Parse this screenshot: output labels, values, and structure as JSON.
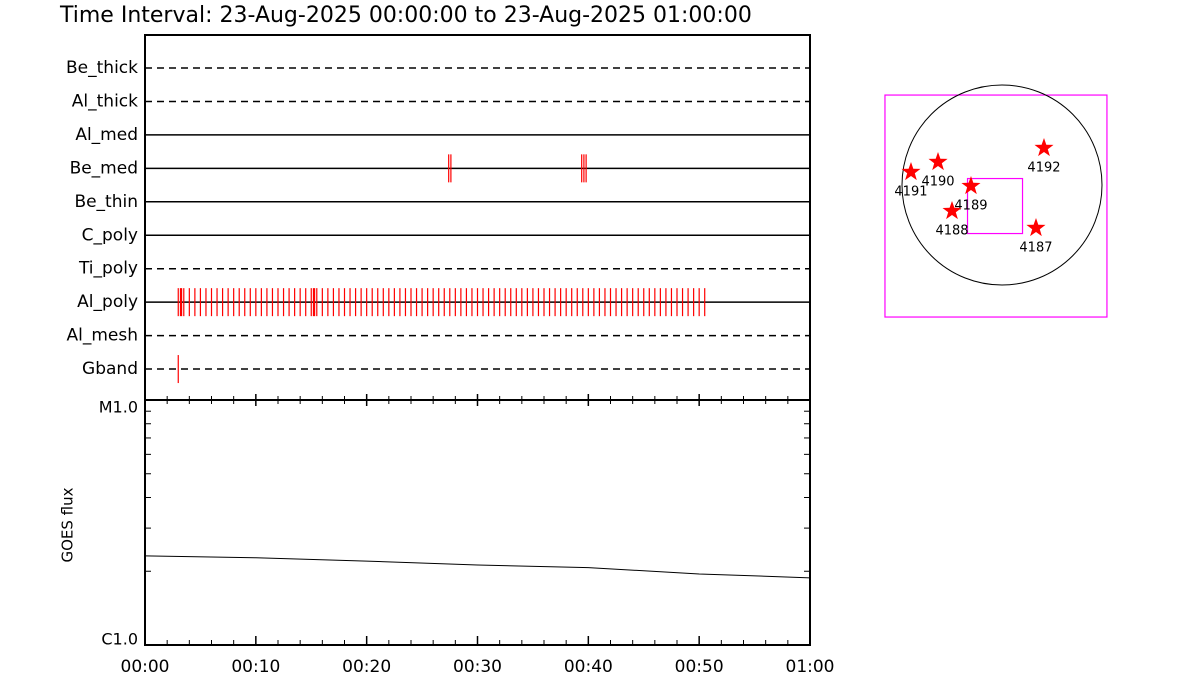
{
  "title": "Time Interval: 23-Aug-2025 00:00:00 to 23-Aug-2025 01:00:00",
  "chart_data": [
    {
      "type": "timeline",
      "categories": [
        "Be_thick",
        "Al_thick",
        "Al_med",
        "Be_med",
        "Be_thin",
        "C_poly",
        "Ti_poly",
        "Al_poly",
        "Al_mesh",
        "Gband"
      ],
      "line_styles": [
        "dashed",
        "dashed",
        "solid",
        "solid",
        "solid",
        "solid",
        "dashed",
        "solid",
        "dashed",
        "dashed"
      ],
      "color": "#ff0000",
      "xlim": [
        0,
        60
      ],
      "events": [
        [],
        [],
        [],
        [
          27.4,
          27.6,
          39.4,
          39.6,
          39.8
        ],
        [],
        [],
        [],
        [
          3.0,
          3.2,
          3.3,
          3.5,
          4.0,
          4.5,
          5.0,
          5.5,
          6.0,
          6.5,
          7.0,
          7.5,
          8.0,
          8.5,
          9.0,
          9.5,
          10.0,
          10.5,
          11.0,
          11.5,
          12.0,
          12.5,
          13.0,
          13.5,
          14.0,
          14.5,
          15.0,
          15.2,
          15.3,
          15.5,
          16.0,
          16.5,
          17.0,
          17.5,
          18.0,
          18.5,
          19.0,
          19.5,
          20.0,
          20.5,
          21.0,
          21.5,
          22.0,
          22.5,
          23.0,
          23.5,
          24.0,
          24.5,
          25.0,
          25.5,
          26.0,
          26.5,
          27.0,
          27.5,
          28.0,
          28.5,
          29.0,
          29.5,
          30.0,
          30.5,
          31.0,
          31.5,
          32.0,
          32.5,
          33.0,
          33.5,
          34.0,
          34.5,
          35.0,
          35.5,
          36.0,
          36.5,
          37.0,
          37.5,
          38.0,
          38.5,
          39.0,
          39.5,
          40.0,
          40.5,
          41.0,
          41.5,
          42.0,
          42.5,
          43.0,
          43.5,
          44.0,
          44.5,
          45.0,
          45.5,
          46.0,
          46.5,
          47.0,
          47.5,
          48.0,
          48.5,
          49.0,
          49.5,
          50.0,
          50.5
        ],
        [],
        [
          3.0
        ]
      ]
    },
    {
      "type": "line",
      "ylabel": "GOES flux",
      "log_scale": true,
      "color": "#000000",
      "x": [
        0,
        10,
        20,
        30,
        40,
        50,
        60
      ],
      "values": [
        2.31e-06,
        2.27e-06,
        2.2e-06,
        2.12e-06,
        2.07e-06,
        1.95e-06,
        1.88e-06
      ],
      "xlim": [
        0,
        60
      ],
      "xticks": [
        {
          "value": 0,
          "label": "00:00"
        },
        {
          "value": 10,
          "label": "00:10"
        },
        {
          "value": 20,
          "label": "00:20"
        },
        {
          "value": 30,
          "label": "00:30"
        },
        {
          "value": 40,
          "label": "00:40"
        },
        {
          "value": 50,
          "label": "00:50"
        },
        {
          "value": 60,
          "label": "01:00"
        }
      ],
      "minor_xticks": [
        2,
        4,
        6,
        8,
        12,
        14,
        16,
        18,
        22,
        24,
        26,
        28,
        32,
        34,
        36,
        38,
        42,
        44,
        46,
        48,
        52,
        54,
        56,
        58
      ],
      "ylim": [
        1e-06,
        1e-05
      ],
      "yticks": [
        {
          "value": 1e-06,
          "label": "C1.0"
        },
        {
          "value": 1e-05,
          "label": "M1.0"
        }
      ],
      "minor_yticks": [
        2e-06,
        3e-06,
        4e-06,
        5e-06,
        6e-06,
        7e-06,
        8e-06,
        9e-06
      ]
    },
    {
      "type": "map",
      "solar_radius": 960,
      "color": "#ff0000",
      "fov_color": "#ff00ff",
      "regions": [
        {
          "label": "4191",
          "x": -874,
          "y": 125
        },
        {
          "label": "4190",
          "x": -614,
          "y": 221
        },
        {
          "label": "4189",
          "x": -298,
          "y": -10
        },
        {
          "label": "4188",
          "x": -480,
          "y": -250
        },
        {
          "label": "4187",
          "x": 326,
          "y": -413
        },
        {
          "label": "4192",
          "x": 403,
          "y": 355
        }
      ],
      "fov": {
        "xc": -67,
        "yc": -202,
        "width": 528,
        "height": 528
      },
      "outer_fov": {
        "xc": -58,
        "yc": -202,
        "width": 2131,
        "height": 2131
      }
    }
  ]
}
